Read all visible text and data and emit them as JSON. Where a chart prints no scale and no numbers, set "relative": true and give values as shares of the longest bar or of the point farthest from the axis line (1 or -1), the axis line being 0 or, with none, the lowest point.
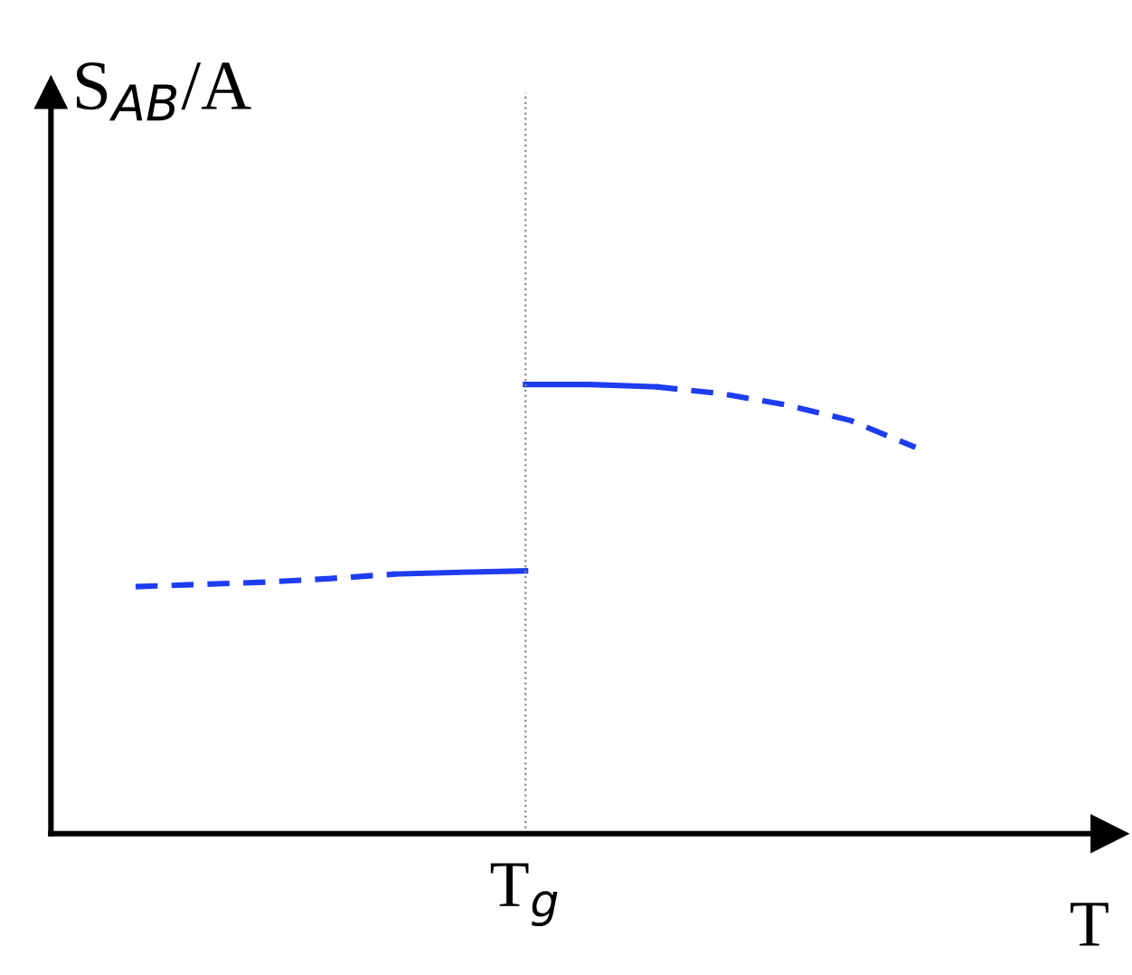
{
  "chart_data": {
    "type": "line",
    "relative": true,
    "ylabel": "S$_{AB}$/A",
    "xlabel": "T",
    "categories": [
      null,
      null,
      null,
      null,
      null,
      null,
      null,
      null,
      null,
      null,
      null,
      null,
      null
    ],
    "annotations": [
      "T$_{g}$"
    ],
    "series": [
      {
        "color": "#1f3df0",
        "line_style": "dashed",
        "values": [
          0.55,
          0.555,
          0.56,
          0.568,
          0.578,
          null,
          null,
          null,
          null,
          null,
          null,
          null,
          null
        ]
      },
      {
        "color": "#1f3df0",
        "line_style": "solid",
        "values": [
          null,
          null,
          null,
          null,
          0.578,
          0.582,
          0.585,
          null,
          null,
          null,
          null,
          null,
          null
        ]
      },
      {
        "color": "#1f3df0",
        "line_style": "solid",
        "values": [
          null,
          null,
          null,
          null,
          null,
          null,
          1,
          1,
          0.995,
          null,
          null,
          null,
          null
        ]
      },
      {
        "color": "#1f3df0",
        "line_style": "dashed",
        "values": [
          null,
          null,
          null,
          null,
          null,
          null,
          null,
          null,
          0.995,
          0.98,
          0.955,
          0.92,
          0.86
        ]
      }
    ],
    "legend": false,
    "marker": "none"
  }
}
